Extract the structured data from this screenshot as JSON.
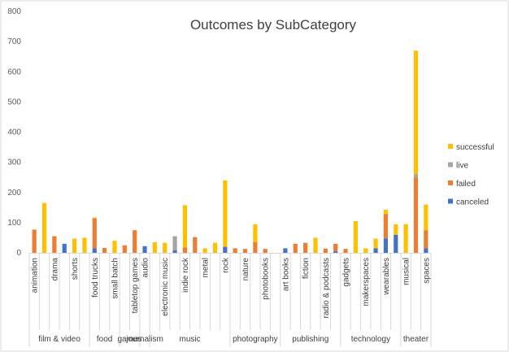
{
  "chart_data": {
    "type": "bar",
    "stacked": true,
    "title": "Outcomes by SubCategory",
    "ylim": [
      0,
      800
    ],
    "yticks": [
      0,
      100,
      200,
      300,
      400,
      500,
      600,
      700,
      800
    ],
    "grid": false,
    "legend_position": "right",
    "groups": [
      {
        "label": "film & video",
        "categories": [
          "animation",
          "",
          "drama",
          "",
          "shorts",
          ""
        ]
      },
      {
        "label": "food",
        "categories": [
          "food trucks",
          "",
          "small batch"
        ]
      },
      {
        "label": "games",
        "categories": [
          "",
          "tabletop games"
        ]
      },
      {
        "label": "journalism",
        "categories": [
          "audio"
        ]
      },
      {
        "label": "music",
        "categories": [
          "",
          "electronic music",
          "",
          "indie rock",
          "",
          "metal",
          "",
          "rock"
        ]
      },
      {
        "label": "photography",
        "categories": [
          "",
          "nature",
          "",
          "photobooks",
          ""
        ]
      },
      {
        "label": "publishing",
        "categories": [
          "art books",
          "",
          "fiction",
          "",
          "radio & podcasts",
          ""
        ]
      },
      {
        "label": "technology",
        "categories": [
          "gadgets",
          "",
          "makerspaces",
          "",
          "wearables",
          ""
        ]
      },
      {
        "label": "theater",
        "categories": [
          "musical",
          "",
          "spaces"
        ]
      }
    ],
    "series": [
      {
        "name": "canceled",
        "color": "#4472C4",
        "values": [
          0,
          0,
          0,
          30,
          0,
          0,
          15,
          0,
          0,
          0,
          0,
          22,
          0,
          0,
          8,
          0,
          0,
          0,
          0,
          20,
          0,
          0,
          0,
          0,
          0,
          15,
          0,
          0,
          0,
          0,
          5,
          0,
          0,
          0,
          15,
          48,
          60,
          0,
          0,
          15
        ]
      },
      {
        "name": "failed",
        "color": "#ED7D31",
        "values": [
          77,
          0,
          55,
          0,
          0,
          0,
          100,
          16,
          0,
          25,
          75,
          0,
          0,
          0,
          0,
          18,
          52,
          0,
          0,
          0,
          15,
          13,
          35,
          13,
          0,
          0,
          30,
          33,
          0,
          14,
          25,
          13,
          0,
          0,
          0,
          80,
          0,
          0,
          250,
          60
        ]
      },
      {
        "name": "live",
        "color": "#A5A5A5",
        "values": [
          0,
          0,
          0,
          0,
          0,
          0,
          0,
          0,
          0,
          0,
          0,
          0,
          0,
          0,
          47,
          0,
          0,
          0,
          0,
          0,
          0,
          0,
          0,
          0,
          0,
          0,
          0,
          0,
          0,
          0,
          0,
          0,
          0,
          0,
          0,
          0,
          0,
          0,
          10,
          0
        ]
      },
      {
        "name": "successful",
        "color": "#FFC000",
        "values": [
          0,
          165,
          0,
          0,
          47,
          50,
          2,
          0,
          40,
          0,
          0,
          0,
          35,
          33,
          0,
          140,
          0,
          15,
          33,
          220,
          0,
          0,
          60,
          0,
          0,
          0,
          0,
          0,
          50,
          0,
          0,
          0,
          105,
          15,
          32,
          15,
          35,
          95,
          410,
          85
        ]
      }
    ]
  }
}
